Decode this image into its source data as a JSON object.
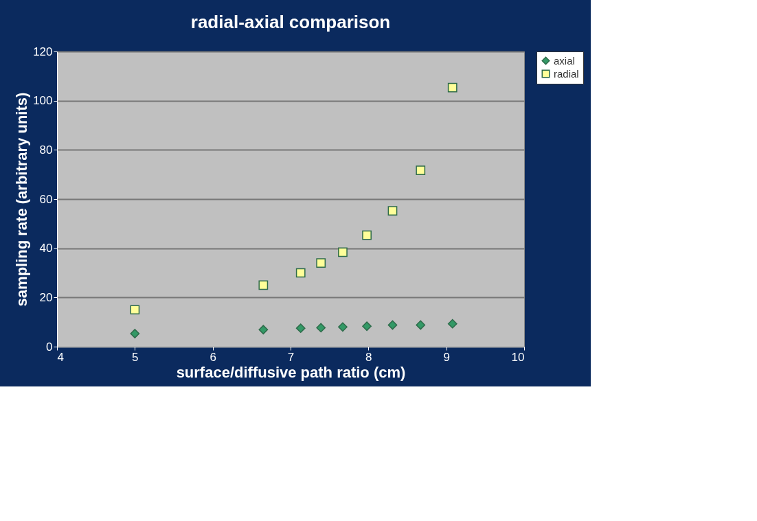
{
  "chart_data": {
    "type": "scatter",
    "title": "radial-axial comparison",
    "xlabel": "surface/diffusive path ratio (cm)",
    "ylabel": "sampling rate (arbitrary units)",
    "x": [
      5.0,
      6.65,
      7.13,
      7.39,
      7.67,
      7.98,
      8.31,
      8.67,
      9.08
    ],
    "series": [
      {
        "name": "axial",
        "color": "#339966",
        "marker": "diamond",
        "values": [
          5.3,
          6.9,
          7.5,
          7.7,
          8,
          8.3,
          8.8,
          8.8,
          9.3
        ]
      },
      {
        "name": "radial",
        "color": "#ffff99",
        "marker": "square",
        "values": [
          15,
          25,
          30,
          34,
          38.4,
          45.3,
          55.2,
          71.7,
          105.3
        ]
      }
    ],
    "xlim": [
      4,
      10
    ],
    "xticks": [
      4,
      5,
      6,
      7,
      8,
      9,
      10
    ],
    "ylim": [
      0,
      120
    ],
    "yticks": [
      0,
      20,
      40,
      60,
      80,
      100,
      120
    ],
    "grid": "y",
    "legend": "right"
  }
}
